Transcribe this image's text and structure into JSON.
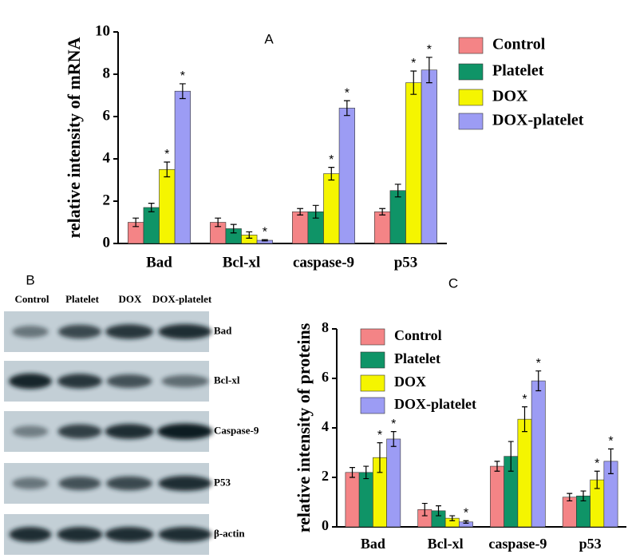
{
  "chart_data": [
    {
      "type": "bar",
      "panel_label": "A",
      "y_label": "relative intensity of mRNA",
      "categories": [
        "Bad",
        "Bcl-xl",
        "caspase-9",
        "p53"
      ],
      "ylim": [
        0,
        10
      ],
      "yticks": [
        0,
        2,
        4,
        6,
        8,
        10
      ],
      "series": [
        {
          "name": "Control",
          "color": "#f48486",
          "values": [
            1.0,
            1.0,
            1.5,
            1.5
          ],
          "errors": [
            0.2,
            0.2,
            0.15,
            0.15
          ],
          "annotations": [
            null,
            null,
            null,
            null
          ]
        },
        {
          "name": "Platelet",
          "color": "#0f9467",
          "values": [
            1.7,
            0.7,
            1.5,
            2.5
          ],
          "errors": [
            0.2,
            0.2,
            0.3,
            0.3
          ],
          "annotations": [
            null,
            null,
            null,
            null
          ]
        },
        {
          "name": "DOX",
          "color": "#f5f500",
          "values": [
            3.5,
            0.4,
            3.3,
            7.6
          ],
          "errors": [
            0.35,
            0.15,
            0.3,
            0.55
          ],
          "annotations": [
            "*",
            null,
            "*",
            "*"
          ]
        },
        {
          "name": "DOX-platelet",
          "color": "#9c9cf4",
          "values": [
            7.2,
            0.15,
            6.4,
            8.2
          ],
          "errors": [
            0.35,
            0.03,
            0.35,
            0.6
          ],
          "annotations": [
            "*",
            "*",
            "*",
            "*"
          ]
        }
      ]
    },
    {
      "type": "bar",
      "panel_label": "C",
      "y_label": "relative intensity of proteins",
      "categories": [
        "Bad",
        "Bcl-xl",
        "caspase-9",
        "p53"
      ],
      "ylim": [
        0,
        8
      ],
      "yticks": [
        0,
        2,
        4,
        6,
        8
      ],
      "series": [
        {
          "name": "Control",
          "color": "#f48486",
          "values": [
            2.2,
            0.7,
            2.45,
            1.2
          ],
          "errors": [
            0.2,
            0.25,
            0.2,
            0.15
          ],
          "annotations": [
            null,
            null,
            null,
            null
          ]
        },
        {
          "name": "Platelet",
          "color": "#0f9467",
          "values": [
            2.2,
            0.65,
            2.85,
            1.25
          ],
          "errors": [
            0.25,
            0.2,
            0.6,
            0.2
          ],
          "annotations": [
            null,
            null,
            null,
            null
          ]
        },
        {
          "name": "DOX",
          "color": "#f5f500",
          "values": [
            2.8,
            0.35,
            4.35,
            1.9
          ],
          "errors": [
            0.6,
            0.1,
            0.5,
            0.35
          ],
          "annotations": [
            "*",
            null,
            "*",
            "*"
          ]
        },
        {
          "name": "DOX-platelet",
          "color": "#9c9cf4",
          "values": [
            3.55,
            0.2,
            5.9,
            2.65
          ],
          "errors": [
            0.3,
            0.05,
            0.4,
            0.5
          ],
          "annotations": [
            "*",
            "*",
            "*",
            "*"
          ]
        }
      ]
    }
  ],
  "blot": {
    "panel_label": "B",
    "columns": [
      "Control",
      "Platelet",
      "DOX",
      "DOX-platelet"
    ],
    "rows": [
      "Bad",
      "Bcl-xl",
      "Caspase-9",
      "P53",
      "β-actin"
    ]
  }
}
